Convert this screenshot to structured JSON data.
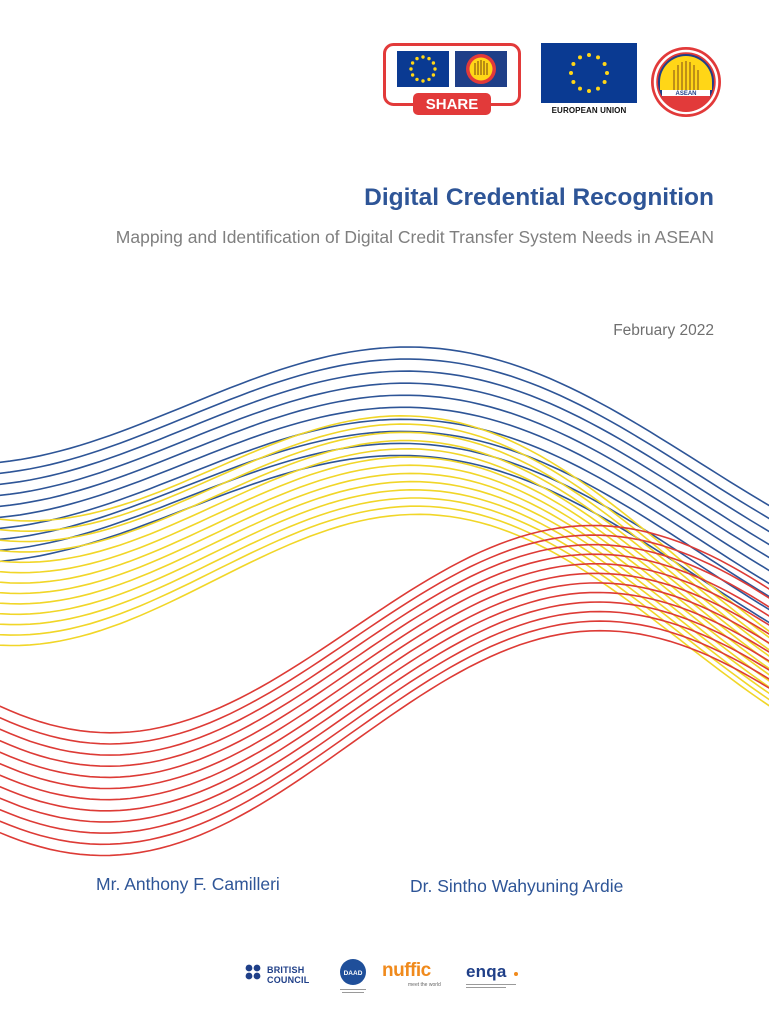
{
  "header_logos": {
    "share_label": "SHARE",
    "eu_caption": "EUROPEAN UNION",
    "asean_label": "ASEAN"
  },
  "title": "Digital Credential Recognition",
  "subtitle": "Mapping and Identification of Digital Credit Transfer System Needs in ASEAN",
  "date": "February 2022",
  "authors": [
    "Mr. Anthony F. Camilleri",
    "Dr. Sintho Wahyuning Ardie"
  ],
  "partners": {
    "british_council": "BRITISH COUNCIL",
    "daad": "DAAD",
    "nuffic": "nuffic",
    "nuffic_tagline": "meet the world",
    "enqa": "enqa"
  },
  "colors": {
    "blue": "#2e5597",
    "yellow": "#f1d628",
    "red": "#dd3b36",
    "grey": "#7f7f7f",
    "eu_blue": "#0a3a92",
    "eu_gold": "#ffd617",
    "orange": "#f08a1c"
  }
}
